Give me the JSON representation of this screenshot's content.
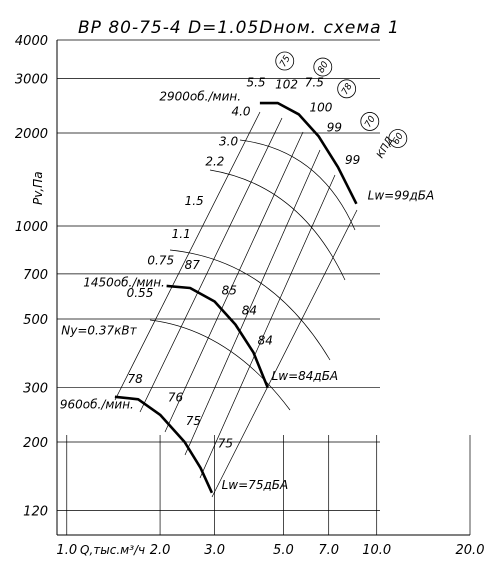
{
  "chart_data": {
    "type": "line",
    "title": "ВР 80-75-4 D=1.05Dном. схема 1",
    "x_label": "Q,тыс.м³/ч",
    "y_label": "Pv,Па",
    "log_x": true,
    "log_y": true,
    "grid": true,
    "xlim": [
      0.93,
      20
    ],
    "ylim": [
      100,
      4000
    ],
    "xticks": [
      {
        "value": 1,
        "label": "1.0"
      },
      {
        "value": 2,
        "label": "2.0"
      },
      {
        "value": 3,
        "label": "3.0"
      },
      {
        "value": 5,
        "label": "5.0"
      },
      {
        "value": 7,
        "label": "7.0"
      },
      {
        "value": 10,
        "label": "10.0"
      },
      {
        "value": 20,
        "label": "20.0"
      }
    ],
    "yticks": [
      120,
      200,
      300,
      500,
      700,
      1000,
      2000,
      3000,
      4000
    ],
    "series": [
      {
        "name": "2900об./мин.",
        "color": "#000000",
        "x": [
          4.2,
          4.8,
          5.6,
          6.5,
          7.5,
          8.6
        ],
        "values": [
          2500,
          2500,
          2300,
          1950,
          1550,
          1180
        ]
      },
      {
        "name": "1450об./мин.",
        "color": "#000000",
        "x": [
          2.1,
          2.5,
          3.0,
          3.5,
          4.0,
          4.45
        ],
        "values": [
          640,
          630,
          570,
          480,
          390,
          300
        ]
      },
      {
        "name": "960об./мин.",
        "color": "#000000",
        "x": [
          1.43,
          1.7,
          2.0,
          2.4,
          2.7,
          2.94
        ],
        "values": [
          280,
          275,
          245,
          200,
          165,
          137
        ]
      }
    ],
    "annotations": [
      {
        "text": "2900об./мин.",
        "x": 1.99,
        "y": 2550
      },
      {
        "text": "1450об./мин.",
        "x": 1.13,
        "y": 638
      },
      {
        "text": "960об./мин.",
        "x": 0.95,
        "y": 257
      },
      {
        "text": "Ny=0.37кВт",
        "x": 0.96,
        "y": 445
      },
      {
        "text": "Lw=99дБА",
        "x": 9.35,
        "y": 1220
      },
      {
        "text": "Lw=84дБА",
        "x": 4.58,
        "y": 318
      },
      {
        "text": "Lw=75дБА",
        "x": 3.16,
        "y": 141
      },
      {
        "text": "5.5",
        "x": 3.8,
        "y": 2830
      },
      {
        "text": "7.5",
        "x": 5.86,
        "y": 2830
      },
      {
        "text": "4.0",
        "x": 3.4,
        "y": 2280
      },
      {
        "text": "3.0",
        "x": 3.1,
        "y": 1820
      },
      {
        "text": "2.2",
        "x": 2.8,
        "y": 1570
      },
      {
        "text": "1.5",
        "x": 2.4,
        "y": 1170
      },
      {
        "text": "1.1",
        "x": 2.18,
        "y": 915
      },
      {
        "text": "0.75",
        "x": 1.82,
        "y": 752
      },
      {
        "text": "0.55",
        "x": 1.56,
        "y": 590
      },
      {
        "text": "102",
        "x": 4.7,
        "y": 2790
      },
      {
        "text": "100",
        "x": 6.07,
        "y": 2350
      },
      {
        "text": "99",
        "x": 6.9,
        "y": 2020
      },
      {
        "text": "99",
        "x": 7.9,
        "y": 1590
      },
      {
        "text": "87",
        "x": 2.4,
        "y": 725
      },
      {
        "text": "85",
        "x": 3.16,
        "y": 600
      },
      {
        "text": "84",
        "x": 3.67,
        "y": 517
      },
      {
        "text": "84",
        "x": 4.13,
        "y": 413
      },
      {
        "text": "78",
        "x": 1.57,
        "y": 310
      },
      {
        "text": "76",
        "x": 2.12,
        "y": 270
      },
      {
        "text": "75",
        "x": 2.42,
        "y": 227
      },
      {
        "text": "75",
        "x": 3.07,
        "y": 192
      }
    ],
    "efficiency_marks": [
      {
        "text": "75",
        "x": 5.05,
        "y": 3420
      },
      {
        "text": "80",
        "x": 6.7,
        "y": 3270
      },
      {
        "text": "78",
        "x": 8.0,
        "y": 2780
      },
      {
        "text": "70",
        "x": 9.5,
        "y": 2180
      },
      {
        "text": "60",
        "x": 11.7,
        "y": 1920
      }
    ],
    "efficiency_label": {
      "text": "КПД",
      "x": 10.4,
      "y": 1650
    }
  }
}
